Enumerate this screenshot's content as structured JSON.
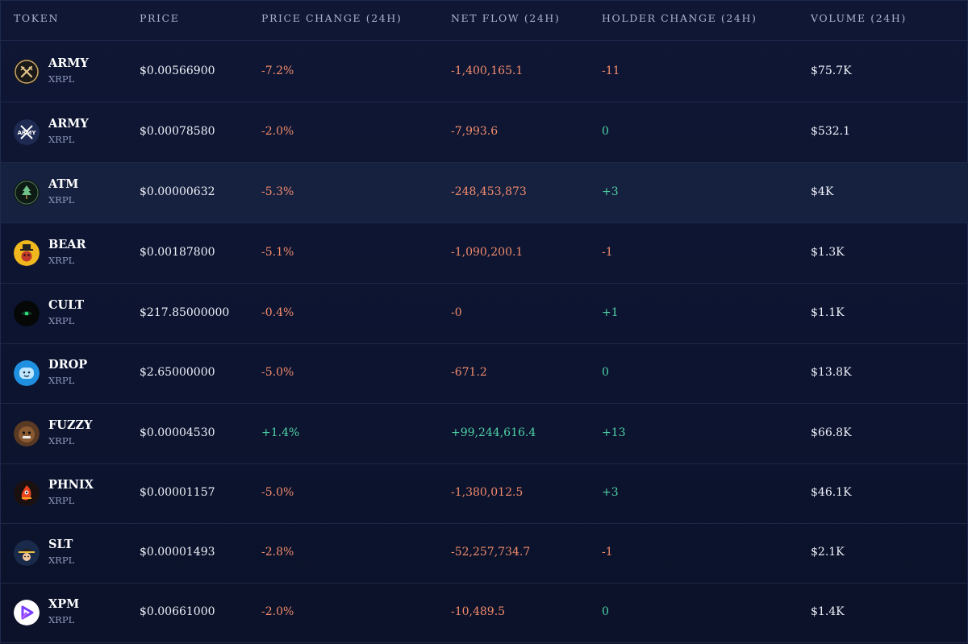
{
  "headers": {
    "token": "TOKEN",
    "price": "PRICE",
    "price_change": "PRICE CHANGE (24H)",
    "net_flow": "NET FLOW (24H)",
    "holder_change": "HOLDER CHANGE (24H)",
    "volume": "VOLUME (24H)"
  },
  "colors": {
    "negative": "#f28b6b",
    "positive": "#4fd1a5",
    "background": "#0c1228",
    "highlight_row": "#16203f"
  },
  "rows": [
    {
      "name": "ARMY",
      "chain": "XRPL",
      "price": "$0.00566900",
      "price_change": "-7.2%",
      "net_flow": "-1,400,165.1",
      "holder_change": "-11",
      "volume": "$75.7K",
      "icon": "crossed-swords-logo-icon"
    },
    {
      "name": "ARMY",
      "chain": "XRPL",
      "price": "$0.00078580",
      "price_change": "-2.0%",
      "net_flow": "-7,993.6",
      "holder_change": "0",
      "volume": "$532.1",
      "icon": "army-xrp-logo-icon"
    },
    {
      "name": "ATM",
      "chain": "XRPL",
      "price": "$0.00000632",
      "price_change": "-5.3%",
      "net_flow": "-248,453,873",
      "holder_change": "+3",
      "volume": "$4K",
      "icon": "tree-logo-icon"
    },
    {
      "name": "BEAR",
      "chain": "XRPL",
      "price": "$0.00187800",
      "price_change": "-5.1%",
      "net_flow": "-1,090,200.1",
      "holder_change": "-1",
      "volume": "$1.3K",
      "icon": "bear-hat-logo-icon"
    },
    {
      "name": "CULT",
      "chain": "XRPL",
      "price": "$217.85000000",
      "price_change": "-0.4%",
      "net_flow": "-0",
      "holder_change": "+1",
      "volume": "$1.1K",
      "icon": "eye-logo-icon"
    },
    {
      "name": "DROP",
      "chain": "XRPL",
      "price": "$2.65000000",
      "price_change": "-5.0%",
      "net_flow": "-671.2",
      "holder_change": "0",
      "volume": "$13.8K",
      "icon": "blue-drop-face-logo-icon"
    },
    {
      "name": "FUZZY",
      "chain": "XRPL",
      "price": "$0.00004530",
      "price_change": "+1.4%",
      "net_flow": "+99,244,616.4",
      "holder_change": "+13",
      "volume": "$66.8K",
      "icon": "fuzzy-bear-logo-icon"
    },
    {
      "name": "PHNIX",
      "chain": "XRPL",
      "price": "$0.00001157",
      "price_change": "-5.0%",
      "net_flow": "-1,380,012.5",
      "holder_change": "+3",
      "volume": "$46.1K",
      "icon": "phoenix-logo-icon"
    },
    {
      "name": "SLT",
      "chain": "XRPL",
      "price": "$0.00001493",
      "price_change": "-2.8%",
      "net_flow": "-52,257,734.7",
      "holder_change": "-1",
      "volume": "$2.1K",
      "icon": "cap-character-logo-icon"
    },
    {
      "name": "XPM",
      "chain": "XRPL",
      "price": "$0.00661000",
      "price_change": "-2.0%",
      "net_flow": "-10,489.5",
      "holder_change": "0",
      "volume": "$1.4K",
      "icon": "xpm-triangle-logo-icon"
    }
  ]
}
